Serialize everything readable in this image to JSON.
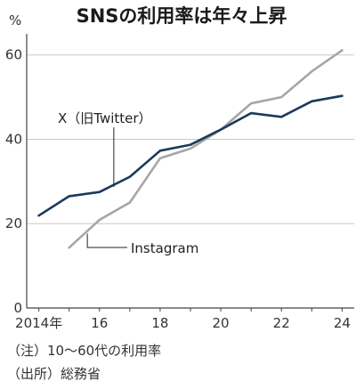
{
  "chart_data": {
    "type": "line",
    "title": "SNSの利用率は年々上昇",
    "y_unit": "%",
    "xlabel": "",
    "ylabel": "",
    "ylim": [
      0,
      65
    ],
    "xlim": [
      2013.6,
      2024.4
    ],
    "y_ticks": [
      0,
      20,
      40,
      60
    ],
    "x_ticks": [
      {
        "value": 2014,
        "label": "2014年"
      },
      {
        "value": 2016,
        "label": "16"
      },
      {
        "value": 2018,
        "label": "18"
      },
      {
        "value": 2020,
        "label": "20"
      },
      {
        "value": 2022,
        "label": "22"
      },
      {
        "value": 2024,
        "label": "24"
      }
    ],
    "grid": true,
    "series": [
      {
        "name": "X（旧Twitter）",
        "color": "#1b3a5c",
        "x": [
          2014,
          2015,
          2016,
          2017,
          2018,
          2019,
          2020,
          2021,
          2022,
          2023,
          2024
        ],
        "values": [
          21.9,
          26.5,
          27.5,
          31.1,
          37.3,
          38.7,
          42.3,
          46.2,
          45.3,
          49.0,
          50.3
        ]
      },
      {
        "name": "Instagram",
        "color": "#a6a6a6",
        "x": [
          2015,
          2016,
          2017,
          2018,
          2019,
          2020,
          2021,
          2022,
          2023,
          2024
        ],
        "values": [
          14.3,
          20.9,
          25.0,
          35.5,
          37.8,
          42.3,
          48.5,
          50.0,
          56.1,
          61.1
        ]
      }
    ],
    "notes": [
      "（注）10～60代の利用率",
      "（出所）総務省"
    ]
  }
}
